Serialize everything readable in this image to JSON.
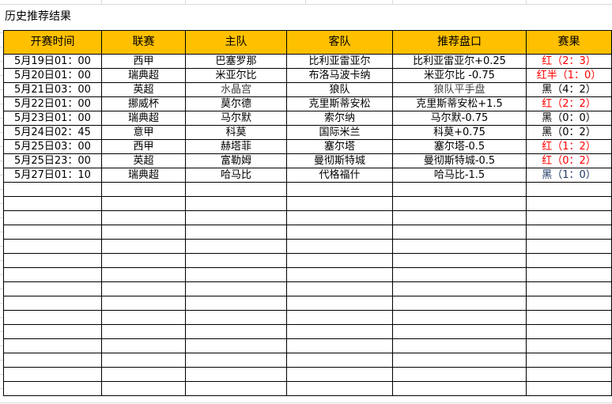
{
  "title": "历史推荐结果",
  "columns": [
    "开赛时间",
    "联赛",
    "主队",
    "客队",
    "推荐盘口",
    "赛果"
  ],
  "colors": {
    "header": "#ffc000",
    "win": "#ff0000",
    "loss": "#000000",
    "last_loss": "#1f3864"
  },
  "rows": [
    {
      "time": "5月19日01：00",
      "league": "西甲",
      "home": "巴塞罗那",
      "away": "比利亚雷亚尔",
      "pick": "比利亚雷亚尔+0.25",
      "result": "红（2：3）",
      "status": "red"
    },
    {
      "time": "5月20日01：00",
      "league": "瑞典超",
      "home": "米亚尔比",
      "away": "布洛马波卡纳",
      "pick": "米亚尔比 -0.75",
      "result": "红半（1：0）",
      "status": "red"
    },
    {
      "time": "5月21日03：00",
      "league": "英超",
      "home": "水晶宫",
      "away": "狼队",
      "pick": "狼队平手盘",
      "result": "黑（4：2）",
      "status": "black"
    },
    {
      "time": "5月22日01：00",
      "league": "挪威杯",
      "home": "莫尔德",
      "away": "克里斯蒂安松",
      "pick": "克里斯蒂安松+1.5",
      "result": "红（2：2）",
      "status": "red"
    },
    {
      "time": "5月23日01：00",
      "league": "瑞典超",
      "home": "马尔默",
      "away": "索尔纳",
      "pick": "马尔默-0.75",
      "result": "黑（0：0）",
      "status": "black"
    },
    {
      "time": "5月24日02：45",
      "league": "意甲",
      "home": "科莫",
      "away": "国际米兰",
      "pick": "科莫+0.75",
      "result": "黑（0：2）",
      "status": "black"
    },
    {
      "time": "5月25日03：00",
      "league": "西甲",
      "home": "赫塔菲",
      "away": "塞尔塔",
      "pick": "塞尔塔-0.5",
      "result": "红（1：2）",
      "status": "red"
    },
    {
      "time": "5月25日23：00",
      "league": "英超",
      "home": "富勒姆",
      "away": "曼彻斯特城",
      "pick": "曼彻斯特城-0.5",
      "result": "红（0：2）",
      "status": "red"
    },
    {
      "time": "5月27日01：10",
      "league": "瑞典超",
      "home": "哈马比",
      "away": "代格福什",
      "pick": "哈马比-1.5",
      "result": "黑（1：0）",
      "status": "blue"
    }
  ]
}
